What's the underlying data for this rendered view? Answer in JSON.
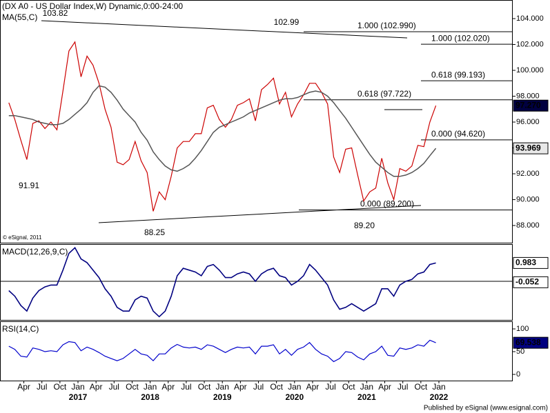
{
  "chart_data": {
    "type": "line",
    "title": "(DX A0 - US Dollar Index,W) Dynamic,0:00-24:00",
    "ma_title": "MA(55,C)",
    "copyright": "© eSignal, 2011",
    "footer": "Published by eSignal (www.esignal.com)",
    "x": [
      "2016-01",
      "2016-02",
      "2016-03",
      "2016-04",
      "2016-05",
      "2016-06",
      "2016-07",
      "2016-08",
      "2016-09",
      "2016-10",
      "2016-11",
      "2016-12",
      "2017-01",
      "2017-02",
      "2017-03",
      "2017-04",
      "2017-05",
      "2017-06",
      "2017-07",
      "2017-08",
      "2017-09",
      "2017-10",
      "2017-11",
      "2017-12",
      "2018-01",
      "2018-02",
      "2018-03",
      "2018-04",
      "2018-05",
      "2018-06",
      "2018-07",
      "2018-08",
      "2018-09",
      "2018-10",
      "2018-11",
      "2018-12",
      "2019-01",
      "2019-02",
      "2019-03",
      "2019-04",
      "2019-05",
      "2019-06",
      "2019-07",
      "2019-08",
      "2019-09",
      "2019-10",
      "2019-11",
      "2019-12",
      "2020-01",
      "2020-02",
      "2020-03",
      "2020-04",
      "2020-05",
      "2020-06",
      "2020-07",
      "2020-08",
      "2020-09",
      "2020-10",
      "2020-11",
      "2020-12",
      "2021-01",
      "2021-02",
      "2021-03",
      "2021-04",
      "2021-05",
      "2021-06",
      "2021-07",
      "2021-08",
      "2021-09",
      "2021-10",
      "2021-11",
      "2021-12"
    ],
    "series": [
      {
        "name": "US Dollar Index",
        "color": "#cc0000",
        "values": [
          97.5,
          96.2,
          94.6,
          93.1,
          95.9,
          96.1,
          95.5,
          96.0,
          95.4,
          98.4,
          101.5,
          102.2,
          99.5,
          101.1,
          100.4,
          99.0,
          97.0,
          95.6,
          92.9,
          92.7,
          93.1,
          94.5,
          93.0,
          92.1,
          89.1,
          90.6,
          90.0,
          91.8,
          94.0,
          94.5,
          94.5,
          95.1,
          95.1,
          97.1,
          97.3,
          96.2,
          95.6,
          96.2,
          97.3,
          97.5,
          97.8,
          96.1,
          98.5,
          98.9,
          99.4,
          97.4,
          98.3,
          96.4,
          97.4,
          98.1,
          99.0,
          99.0,
          98.3,
          97.4,
          93.3,
          92.1,
          93.9,
          94.0,
          91.9,
          89.9,
          90.6,
          90.9,
          93.2,
          91.3,
          90.0,
          92.4,
          92.2,
          92.6,
          94.2,
          94.1,
          96.0,
          97.27
        ]
      },
      {
        "name": "MA(55,C)",
        "color": "#555555",
        "values": [
          96.5,
          96.5,
          96.4,
          96.3,
          96.2,
          96.0,
          95.9,
          95.8,
          95.8,
          95.9,
          96.2,
          96.6,
          97.0,
          97.5,
          98.3,
          98.8,
          98.7,
          98.3,
          97.7,
          97.0,
          96.5,
          96.0,
          95.2,
          94.6,
          93.7,
          93.1,
          92.6,
          92.3,
          92.2,
          92.4,
          92.7,
          93.2,
          93.8,
          94.5,
          95.2,
          95.6,
          95.8,
          96.0,
          96.2,
          96.4,
          96.7,
          96.9,
          97.1,
          97.3,
          97.5,
          97.7,
          97.8,
          97.8,
          97.9,
          98.1,
          98.3,
          98.4,
          98.3,
          98.0,
          97.5,
          96.9,
          96.3,
          95.6,
          94.9,
          94.2,
          93.5,
          92.9,
          92.5,
          92.1,
          91.8,
          91.8,
          91.9,
          92.1,
          92.4,
          92.8,
          93.4,
          93.969
        ]
      }
    ],
    "ylim": [
      86.67,
      105.44
    ],
    "yticks": [
      {
        "value": 88,
        "label": "88.000"
      },
      {
        "value": 90,
        "label": "90.000"
      },
      {
        "value": 92,
        "label": "92.000"
      },
      {
        "value": 94,
        "label": "94.000"
      },
      {
        "value": 96,
        "label": "96.000"
      },
      {
        "value": 98,
        "label": "98.000"
      },
      {
        "value": 100,
        "label": "100.000"
      },
      {
        "value": 102,
        "label": "102.000"
      },
      {
        "value": 104,
        "label": "104.000"
      }
    ],
    "price_tag": {
      "value": 97.27,
      "label": "97.270"
    },
    "ma_tag": {
      "value": 93.969,
      "label": "93.969"
    },
    "levels": [
      {
        "value": 102.99,
        "label": "1.000 (102.990)",
        "color": "#000000"
      },
      {
        "value": 102.02,
        "label": "1.000 (102.020)",
        "color": "#000080"
      },
      {
        "value": 99.193,
        "label": "0.618 (99.193)",
        "color": "#008000"
      },
      {
        "value": 97.722,
        "label": "0.618 (97.722)",
        "color": "#008000"
      },
      {
        "value": 94.62,
        "label": "0.000 (94.620)",
        "color": "#000000"
      },
      {
        "value": 89.2,
        "label": "0.000 (89.200)",
        "color": "#000000"
      }
    ],
    "point_labels": [
      103.82,
      102.99,
      91.91,
      88.25,
      {
        "value": 89.2,
        "label": "89.20"
      }
    ],
    "macd": {
      "title": "MACD(12,26,9,C)",
      "color": "#000080",
      "ylim": [
        -2.11,
        1.96
      ],
      "values": [
        -0.5,
        -0.8,
        -1.3,
        -1.6,
        -0.9,
        -0.5,
        -0.3,
        -0.2,
        -0.2,
        0.6,
        1.5,
        1.8,
        1.2,
        1.0,
        0.6,
        0.2,
        -0.4,
        -0.8,
        -1.4,
        -1.6,
        -1.6,
        -1.0,
        -0.8,
        -0.9,
        -1.6,
        -1.9,
        -1.6,
        -0.8,
        0.3,
        0.7,
        0.6,
        0.5,
        0.3,
        0.8,
        0.9,
        0.6,
        0.2,
        0.2,
        0.4,
        0.5,
        0.4,
        0.0,
        0.4,
        0.6,
        0.7,
        0.3,
        0.2,
        -0.2,
        0.0,
        0.3,
        0.9,
        0.6,
        0.2,
        -0.2,
        -1.0,
        -1.5,
        -1.4,
        -1.2,
        -1.4,
        -1.6,
        -1.4,
        -1.2,
        -0.4,
        -0.4,
        -0.8,
        -0.2,
        0.0,
        0.1,
        0.4,
        0.5,
        0.9,
        0.983
      ],
      "macd_tag": {
        "value": 0.983,
        "label": "0.983"
      },
      "hist_tag": {
        "value": -0.052,
        "label": "-0.052"
      }
    },
    "rsi": {
      "title": "RSI(14,C)",
      "color": "#0000cc",
      "ylim": [
        -13.6,
        115.2
      ],
      "yticks": [
        0,
        50,
        100
      ],
      "values": [
        62,
        55,
        40,
        38,
        58,
        55,
        50,
        52,
        50,
        65,
        72,
        70,
        52,
        60,
        55,
        48,
        40,
        35,
        30,
        35,
        45,
        55,
        45,
        42,
        30,
        45,
        45,
        58,
        66,
        60,
        58,
        60,
        55,
        65,
        62,
        55,
        48,
        55,
        60,
        58,
        60,
        45,
        62,
        62,
        65,
        45,
        55,
        42,
        55,
        60,
        70,
        55,
        45,
        40,
        28,
        35,
        50,
        48,
        38,
        32,
        45,
        50,
        62,
        42,
        40,
        58,
        55,
        58,
        65,
        62,
        75,
        69.538
      ],
      "rsi_tag": {
        "value": 69.538,
        "label": "69.538"
      }
    },
    "xticks": [
      {
        "value": "2016-04",
        "label": "Apr"
      },
      {
        "value": "2016-07",
        "label": "Jul"
      },
      {
        "value": "2016-10",
        "label": "Oct"
      },
      {
        "value": "2017-01",
        "label": "Jan"
      },
      {
        "value": "2017-04",
        "label": "Apr"
      },
      {
        "value": "2017-07",
        "label": "Jul"
      },
      {
        "value": "2017-10",
        "label": "Oct"
      },
      {
        "value": "2018-01",
        "label": "Jan"
      },
      {
        "value": "2018-04",
        "label": "Apr"
      },
      {
        "value": "2018-07",
        "label": "Jul"
      },
      {
        "value": "2018-10",
        "label": "Oct"
      },
      {
        "value": "2019-01",
        "label": "Jan"
      },
      {
        "value": "2019-04",
        "label": "Apr"
      },
      {
        "value": "2019-07",
        "label": "Jul"
      },
      {
        "value": "2019-10",
        "label": "Oct"
      },
      {
        "value": "2020-01",
        "label": "Jan"
      },
      {
        "value": "2020-04",
        "label": "Apr"
      },
      {
        "value": "2020-07",
        "label": "Jul"
      },
      {
        "value": "2020-10",
        "label": "Oct"
      },
      {
        "value": "2021-01",
        "label": "Jan"
      },
      {
        "value": "2021-04",
        "label": "Apr"
      },
      {
        "value": "2021-07",
        "label": "Jul"
      },
      {
        "value": "2021-10",
        "label": "Oct"
      },
      {
        "value": "2022-01",
        "label": "Jan"
      }
    ],
    "year_labels": [
      {
        "value": "2017-01",
        "label": "2017"
      },
      {
        "value": "2018-01",
        "label": "2018"
      },
      {
        "value": "2019-01",
        "label": "2019"
      },
      {
        "value": "2020-01",
        "label": "2020"
      },
      {
        "value": "2021-01",
        "label": "2021"
      },
      {
        "value": "2022-01",
        "label": "2022"
      }
    ]
  }
}
